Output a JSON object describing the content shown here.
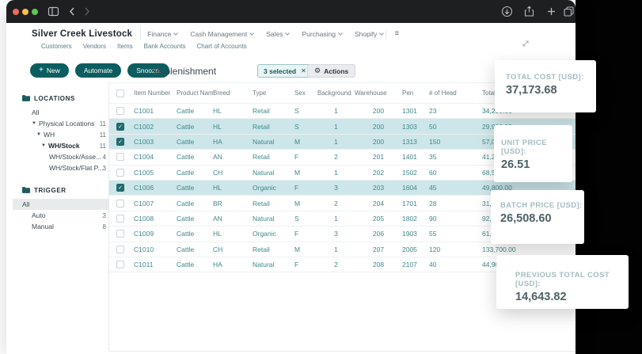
{
  "window_controls": {
    "traffic_lights": [
      "close",
      "minimize",
      "zoom"
    ],
    "left_icons": [
      "sidebar-toggle-icon",
      "back-chevron-icon",
      "forward-chevron-icon"
    ],
    "right_icons": [
      "download-icon",
      "share-icon",
      "new-tab-icon",
      "tab-overview-icon"
    ]
  },
  "header": {
    "app_name": "Silver Creek Livestock",
    "menus": [
      "Finance",
      "Cash Management",
      "Sales",
      "Purchasing",
      "Shopify"
    ],
    "hamburger_icon": "≡",
    "subnav": [
      "Customers",
      "Vendors",
      "Items",
      "Bank Accounts",
      "Chart of Accounts"
    ]
  },
  "toolbar": {
    "buttons": [
      "New",
      "Automate",
      "Snooze."
    ],
    "new_icon": "+",
    "title": "Replenishment",
    "selected_badge": "3 selected",
    "selected_close_icon": "✕",
    "actions_icon": "⚙",
    "actions_label": "Actions"
  },
  "sidebar": {
    "sections": [
      {
        "title": "LOCATIONS",
        "items": [
          {
            "label": "All",
            "count": "",
            "indent": 0,
            "caret": false,
            "selected": false,
            "highlight": false
          },
          {
            "label": "Physical Locations",
            "count": "11",
            "indent": 0,
            "caret": true,
            "selected": false,
            "highlight": false
          },
          {
            "label": "WH",
            "count": "11",
            "indent": 1,
            "caret": true,
            "selected": false,
            "highlight": false
          },
          {
            "label": "WH/Stock",
            "count": "11",
            "indent": 2,
            "caret": true,
            "selected": true,
            "highlight": false
          },
          {
            "label": "WH/Stock/Asse...",
            "count": "4",
            "indent": 3,
            "caret": false,
            "selected": false,
            "highlight": false
          },
          {
            "label": "WH/Stock/Flat P...",
            "count": "3",
            "indent": 3,
            "caret": false,
            "selected": false,
            "highlight": false
          }
        ]
      },
      {
        "title": "TRIGGER",
        "items": [
          {
            "label": "All",
            "count": "",
            "indent": 0,
            "caret": false,
            "selected": false,
            "highlight": true
          },
          {
            "label": "Auto",
            "count": "3",
            "indent": 0,
            "caret": false,
            "selected": false,
            "highlight": false
          },
          {
            "label": "Manual",
            "count": "8",
            "indent": 0,
            "caret": false,
            "selected": false,
            "highlight": false
          }
        ]
      }
    ]
  },
  "table": {
    "columns": [
      "Item Number",
      "Product Name",
      "Breed",
      "Type",
      "Sex",
      "Background",
      "Warehouse",
      "Pen",
      "# of Head",
      "Total"
    ],
    "check_glyph": "✓",
    "rows": [
      {
        "checked": false,
        "item": "C1001",
        "product": "Cattle",
        "breed": "HL",
        "type": "Retail",
        "sex": "S",
        "background": "1",
        "warehouse": "200",
        "pen": "1301",
        "head": "23",
        "total": "34,200.00"
      },
      {
        "checked": true,
        "item": "C1002",
        "product": "Cattle",
        "breed": "HL",
        "type": "Retail",
        "sex": "S",
        "background": "1",
        "warehouse": "200",
        "pen": "1303",
        "head": "50",
        "total": "29,900.00"
      },
      {
        "checked": true,
        "item": "C1003",
        "product": "Cattle",
        "breed": "HA",
        "type": "Natural",
        "sex": "M",
        "background": "1",
        "warehouse": "200",
        "pen": "1313",
        "head": "150",
        "total": "57,000.00"
      },
      {
        "checked": false,
        "item": "C1004",
        "product": "Cattle",
        "breed": "AN",
        "type": "Retail",
        "sex": "F",
        "background": "2",
        "warehouse": "201",
        "pen": "1401",
        "head": "35",
        "total": "41,200.00"
      },
      {
        "checked": false,
        "item": "C1005",
        "product": "Cattle",
        "breed": "CH",
        "type": "Natural",
        "sex": "M",
        "background": "1",
        "warehouse": "202",
        "pen": "1502",
        "head": "60",
        "total": "68,500.00"
      },
      {
        "checked": true,
        "item": "C1006",
        "product": "Cattle",
        "breed": "HL",
        "type": "Organic",
        "sex": "F",
        "background": "3",
        "warehouse": "203",
        "pen": "1604",
        "head": "45",
        "total": "49,800.00"
      },
      {
        "checked": false,
        "item": "C1007",
        "product": "Cattle",
        "breed": "BR",
        "type": "Retail",
        "sex": "M",
        "background": "2",
        "warehouse": "204",
        "pen": "1701",
        "head": "28",
        "total": "31,200.00"
      },
      {
        "checked": false,
        "item": "C1008",
        "product": "Cattle",
        "breed": "AN",
        "type": "Natural",
        "sex": "S",
        "background": "1",
        "warehouse": "205",
        "pen": "1802",
        "head": "90",
        "total": "92,400.00"
      },
      {
        "checked": false,
        "item": "C1009",
        "product": "Cattle",
        "breed": "HL",
        "type": "Organic",
        "sex": "F",
        "background": "3",
        "warehouse": "206",
        "pen": "1903",
        "head": "55",
        "total": "61,400.00"
      },
      {
        "checked": false,
        "item": "C1010",
        "product": "Cattle",
        "breed": "CH",
        "type": "Retail",
        "sex": "M",
        "background": "1",
        "warehouse": "207",
        "pen": "2005",
        "head": "120",
        "total": "133,700.00"
      },
      {
        "checked": false,
        "item": "C1011",
        "product": "Cattle",
        "breed": "HA",
        "type": "Natural",
        "sex": "F",
        "background": "2",
        "warehouse": "208",
        "pen": "2107",
        "head": "40",
        "total": "44,900.00"
      }
    ]
  },
  "stat_cards": [
    {
      "id": "total-cost",
      "label": "TOTAL COST [USD]:",
      "value": "37,173.68"
    },
    {
      "id": "unit-price",
      "label": "UNIT PRICE [USD]:",
      "value": "26.51"
    },
    {
      "id": "batch-price",
      "label": "BATCH PRICE [USD]:",
      "value": "26,508.60"
    },
    {
      "id": "previous-total-cost",
      "label": "PREVIOUS TOTAL COST [USD]:",
      "value": "14,643.82"
    }
  ],
  "colors": {
    "accent_teal": "#0b5d60",
    "selected_row_bg": "#cde6e9",
    "table_text_teal": "#3f8789",
    "titlebar_bg": "#1d1f21",
    "backdrop_black": "#020202",
    "chip_bg": "#e9f4f4",
    "chip_border": "#9cc5c6",
    "card_label": "#a4bcc0",
    "card_value": "#4d6064"
  }
}
